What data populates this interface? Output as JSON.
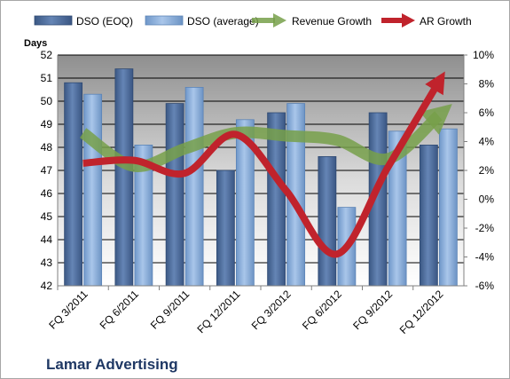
{
  "chart_data": {
    "type": "bar",
    "title": "Lamar Advertising",
    "ylabel": "Days",
    "categories": [
      "FQ 3/2011",
      "FQ 6/2011",
      "FQ 9/2011",
      "FQ 12/2011",
      "FQ 3/2012",
      "FQ 6/2012",
      "FQ 9/2012",
      "FQ 12/2012"
    ],
    "ylim": [
      42,
      52
    ],
    "y2lim": [
      -6,
      10
    ],
    "y_ticks": [
      "42",
      "43",
      "44",
      "45",
      "46",
      "47",
      "48",
      "49",
      "50",
      "51",
      "52"
    ],
    "y2_ticks": [
      "-6%",
      "-4%",
      "-2%",
      "0%",
      "2%",
      "4%",
      "6%",
      "8%",
      "10%"
    ],
    "grid": true,
    "legend_position": "top",
    "series": [
      {
        "name": "DSO (EOQ)",
        "type": "bar",
        "axis": "left",
        "color": "#4a6a9a",
        "values": [
          50.8,
          51.4,
          49.9,
          47.0,
          49.5,
          47.6,
          49.5,
          48.1
        ]
      },
      {
        "name": "DSO (average)",
        "type": "bar",
        "axis": "left",
        "color": "#8db3e2",
        "values": [
          50.3,
          48.1,
          50.6,
          49.2,
          49.9,
          45.4,
          48.7,
          48.8
        ]
      },
      {
        "name": "Revenue Growth",
        "type": "line",
        "axis": "right",
        "color": "#77a04a",
        "values": [
          4.6,
          2.3,
          3.5,
          4.6,
          4.4,
          4.1,
          2.8,
          5.8
        ]
      },
      {
        "name": "AR Growth",
        "type": "line",
        "axis": "right",
        "color": "#c0232c",
        "values": [
          2.5,
          2.7,
          1.8,
          4.5,
          0.6,
          -3.8,
          2.2,
          8.1
        ]
      }
    ]
  }
}
